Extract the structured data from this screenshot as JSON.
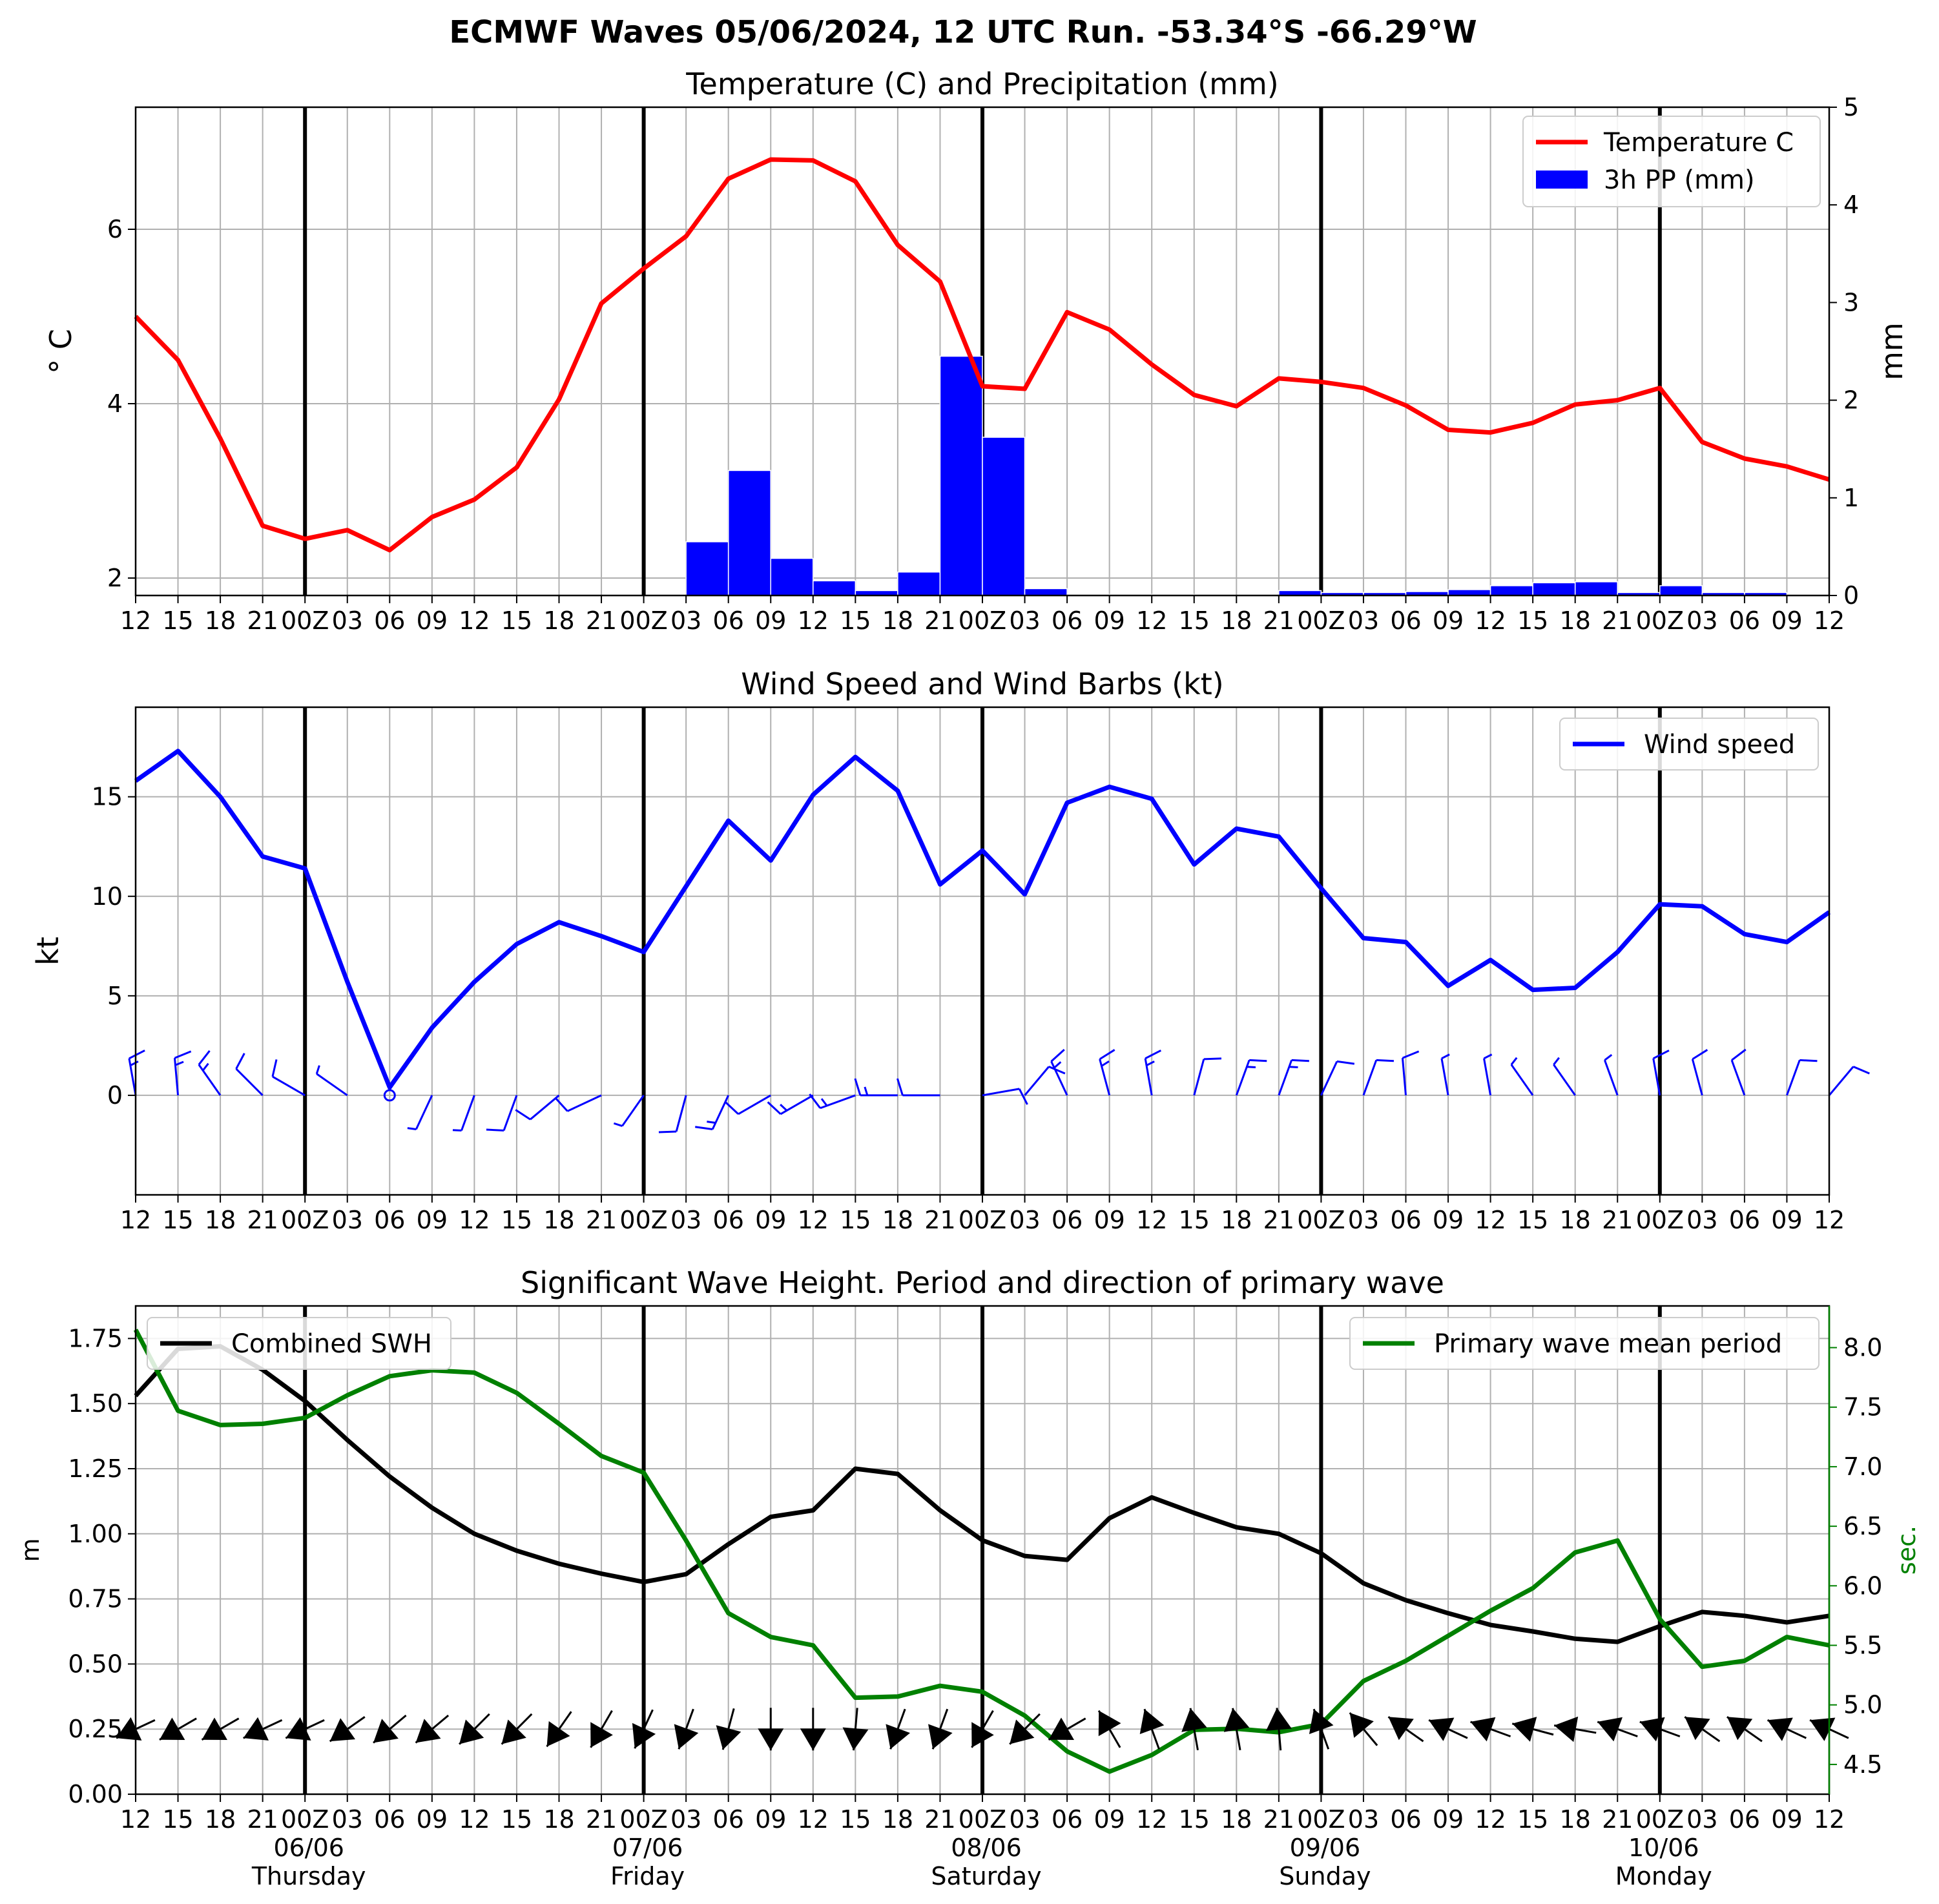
{
  "suptitle": "ECMWF Waves 05/06/2024, 12 UTC Run. -53.34°S -66.29°W",
  "x_tick_labels": [
    "12",
    "15",
    "18",
    "21",
    "00Z",
    "03",
    "06",
    "09",
    "12",
    "15",
    "18",
    "21",
    "00Z",
    "03",
    "06",
    "09",
    "12",
    "15",
    "18",
    "21",
    "00Z",
    "03",
    "06",
    "09",
    "12",
    "15",
    "18",
    "21",
    "00Z",
    "03",
    "06",
    "09",
    "12",
    "15",
    "18",
    "21",
    "00Z",
    "03",
    "06",
    "09",
    "12"
  ],
  "day_labels": [
    {
      "index": 4,
      "date": "06/06",
      "day": "Thursday"
    },
    {
      "index": 12,
      "date": "07/06",
      "day": "Friday"
    },
    {
      "index": 20,
      "date": "08/06",
      "day": "Saturday"
    },
    {
      "index": 28,
      "date": "09/06",
      "day": "Sunday"
    },
    {
      "index": 36,
      "date": "10/06",
      "day": "Monday"
    }
  ],
  "chart_data": [
    {
      "type": "line",
      "title": "Temperature (C) and Precipitation (mm)",
      "ylabel": "° C",
      "ylabel_right": "mm",
      "ylim": [
        1.8,
        7.4
      ],
      "yticks": [
        2,
        4,
        6
      ],
      "ylim_right": [
        0,
        5
      ],
      "yticks_right": [
        0,
        1,
        2,
        3,
        4,
        5
      ],
      "grid": true,
      "legend": "top-right",
      "series": [
        {
          "name": "Temperature C",
          "color": "#ff0000",
          "values": [
            5.0,
            4.5,
            3.6,
            2.6,
            2.45,
            2.55,
            2.32,
            2.7,
            2.9,
            3.27,
            4.05,
            5.15,
            5.55,
            5.92,
            6.58,
            6.8,
            6.79,
            6.55,
            5.82,
            5.4,
            4.2,
            4.17,
            5.05,
            4.85,
            4.45,
            4.1,
            3.97,
            4.29,
            4.25,
            4.18,
            3.98,
            3.7,
            3.67,
            3.78,
            3.99,
            4.04,
            4.18,
            3.56,
            3.37,
            3.28,
            3.13
          ]
        },
        {
          "name": "3h PP (mm)",
          "color": "#0000ff",
          "type": "bar",
          "values": [
            0,
            0,
            0,
            0,
            0,
            0,
            0,
            0,
            0,
            0,
            0,
            0,
            0,
            0.55,
            1.28,
            0.38,
            0.15,
            0.05,
            0.24,
            2.45,
            1.62,
            0.07,
            0.01,
            0.01,
            0.01,
            0,
            0,
            0.05,
            0.03,
            0.03,
            0.04,
            0.06,
            0.1,
            0.13,
            0.14,
            0.03,
            0.1,
            0.03,
            0.03,
            0.01
          ]
        }
      ]
    },
    {
      "type": "line",
      "title": "Wind Speed and Wind Barbs (kt)",
      "ylabel": "kt",
      "ylim": [
        -5,
        19.5
      ],
      "yticks": [
        0,
        5,
        10,
        15
      ],
      "grid": true,
      "legend": "top-right",
      "series": [
        {
          "name": "Wind speed",
          "color": "#0000ff",
          "values": [
            15.8,
            17.3,
            15.0,
            12.0,
            11.4,
            5.7,
            0.4,
            3.4,
            5.7,
            7.6,
            8.7,
            8.0,
            7.2,
            10.5,
            13.8,
            11.8,
            15.1,
            17.0,
            15.3,
            10.6,
            12.3,
            10.1,
            14.7,
            15.5,
            14.9,
            11.6,
            13.4,
            13.0,
            10.4,
            7.9,
            7.7,
            5.5,
            6.8,
            5.3,
            5.4,
            7.2,
            9.6,
            9.5,
            8.1,
            7.7,
            9.2
          ]
        }
      ],
      "barb_dirs": [
        350,
        355,
        325,
        315,
        300,
        305,
        0,
        205,
        200,
        200,
        230,
        245,
        215,
        195,
        205,
        240,
        240,
        250,
        270,
        270,
        80,
        40,
        335,
        345,
        350,
        15,
        20,
        20,
        25,
        20,
        355,
        350,
        350,
        325,
        325,
        340,
        350,
        345,
        340,
        20,
        40
      ]
    },
    {
      "type": "line",
      "title": "Significant Wave Height. Period and direction of primary wave",
      "ylabel": "m",
      "ylabel_right": "sec.",
      "ylim": [
        0,
        1.875
      ],
      "yticks": [
        0.0,
        0.25,
        0.5,
        0.75,
        1.0,
        1.25,
        1.5,
        1.75
      ],
      "ylim_right": [
        4.25,
        8.35
      ],
      "yticks_right": [
        4.5,
        5.0,
        5.5,
        6.0,
        6.5,
        7.0,
        7.5,
        8.0
      ],
      "grid": true,
      "legend": "top-left / top-right",
      "series": [
        {
          "name": "Combined SWH",
          "color": "#000000",
          "values": [
            1.53,
            1.71,
            1.72,
            1.63,
            1.51,
            1.36,
            1.22,
            1.1,
            1.0,
            0.935,
            0.885,
            0.847,
            0.815,
            0.845,
            0.96,
            1.065,
            1.09,
            1.25,
            1.23,
            1.09,
            0.975,
            0.915,
            0.9,
            1.06,
            1.14,
            1.08,
            1.025,
            1.0,
            0.925,
            0.81,
            0.745,
            0.695,
            0.65,
            0.625,
            0.597,
            0.585,
            0.645,
            0.7,
            0.685,
            0.66,
            0.685
          ]
        },
        {
          "name": "Primary wave mean period",
          "color": "#008000",
          "axis": "right",
          "values": [
            8.15,
            7.47,
            7.35,
            7.36,
            7.41,
            7.6,
            7.76,
            7.81,
            7.79,
            7.62,
            7.36,
            7.09,
            6.95,
            6.38,
            5.77,
            5.57,
            5.5,
            5.06,
            5.07,
            5.16,
            5.11,
            4.91,
            4.61,
            4.44,
            4.58,
            4.79,
            4.8,
            4.77,
            4.84,
            5.2,
            5.37,
            5.58,
            5.79,
            5.98,
            6.28,
            6.38,
            5.72,
            5.32,
            5.37,
            5.57,
            5.5
          ]
        }
      ],
      "arrow_dirs": [
        245,
        240,
        240,
        245,
        245,
        235,
        230,
        230,
        225,
        225,
        215,
        210,
        205,
        200,
        195,
        180,
        180,
        185,
        200,
        200,
        210,
        225,
        240,
        330,
        340,
        350,
        350,
        355,
        340,
        320,
        305,
        295,
        290,
        285,
        280,
        290,
        290,
        305,
        305,
        295,
        295
      ]
    }
  ]
}
